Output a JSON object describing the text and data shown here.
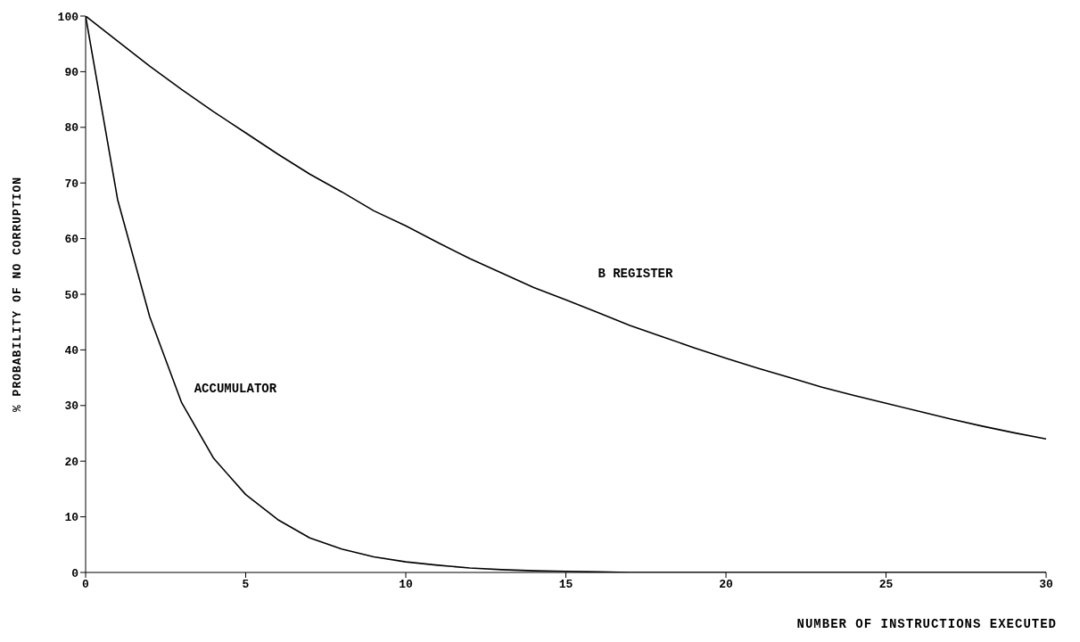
{
  "chart_data": {
    "type": "line",
    "xlabel": "NUMBER OF INSTRUCTIONS EXECUTED",
    "ylabel": "% PROBABILITY OF NO CORRUPTION",
    "x": [
      0,
      1,
      2,
      3,
      4,
      5,
      6,
      7,
      8,
      9,
      10,
      11,
      12,
      13,
      14,
      15,
      16,
      17,
      18,
      19,
      20,
      21,
      22,
      23,
      24,
      25,
      26,
      27,
      28,
      29,
      30
    ],
    "series": [
      {
        "name": "B REGISTER",
        "color": "#000000",
        "values": [
          100,
          95.5,
          91,
          86.8,
          82.8,
          79,
          75.2,
          71.6,
          68.4,
          65,
          62.3,
          59.3,
          56.4,
          53.8,
          51.2,
          49,
          46.7,
          44.4,
          42.4,
          40.4,
          38.5,
          36.7,
          35,
          33.3,
          31.8,
          30.4,
          29,
          27.6,
          26.3,
          25.1,
          24
        ]
      },
      {
        "name": "ACCUMULATOR",
        "color": "#000000",
        "values": [
          100,
          67,
          46,
          30.5,
          20.5,
          14,
          9.5,
          6.2,
          4.2,
          2.8,
          1.9,
          1.3,
          0.8,
          0.5,
          0.3,
          0.2,
          0.1,
          0,
          0,
          0,
          0,
          0,
          0,
          0,
          0,
          0,
          0,
          0,
          0,
          0,
          0
        ]
      }
    ],
    "xlim": [
      0,
      30
    ],
    "xticks": [
      0,
      5,
      10,
      15,
      20,
      25,
      30
    ],
    "ylim": [
      0,
      100
    ],
    "yticks": [
      0,
      10,
      20,
      30,
      40,
      50,
      60,
      70,
      80,
      90,
      100
    ],
    "grid": false,
    "legend": false,
    "marker": "none",
    "line_style": "solid"
  }
}
